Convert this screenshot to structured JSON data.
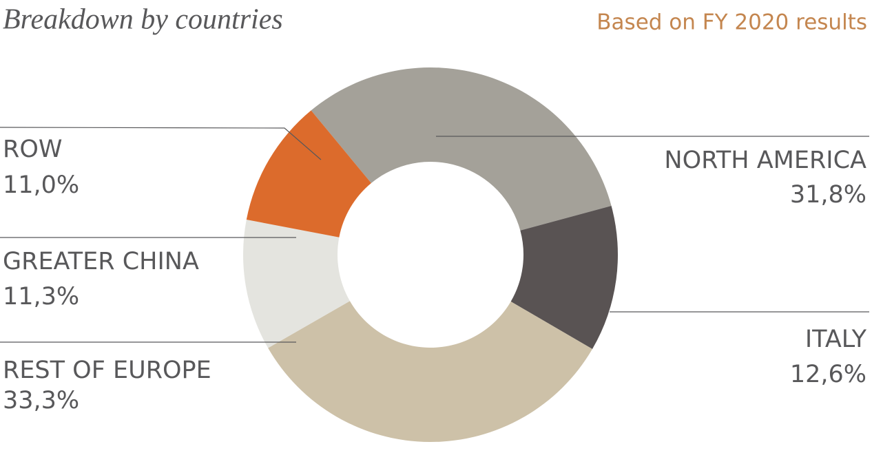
{
  "chart_data": {
    "type": "pie",
    "donut": true,
    "title": "Breakdown by countries",
    "subtitle": "Based on FY 2020 results",
    "categories": [
      "NORTH AMERICA",
      "ITALY",
      "REST OF EUROPE",
      "GREATER CHINA",
      "ROW"
    ],
    "values": [
      31.8,
      12.6,
      33.3,
      11.3,
      11.0
    ],
    "value_labels": [
      "31,8%",
      "12,6%",
      "33,3%",
      "11,3%",
      "11,0%"
    ],
    "colors": [
      "#a4a199",
      "#595353",
      "#cdc1a8",
      "#e4e4df",
      "#dc6b2c"
    ]
  }
}
